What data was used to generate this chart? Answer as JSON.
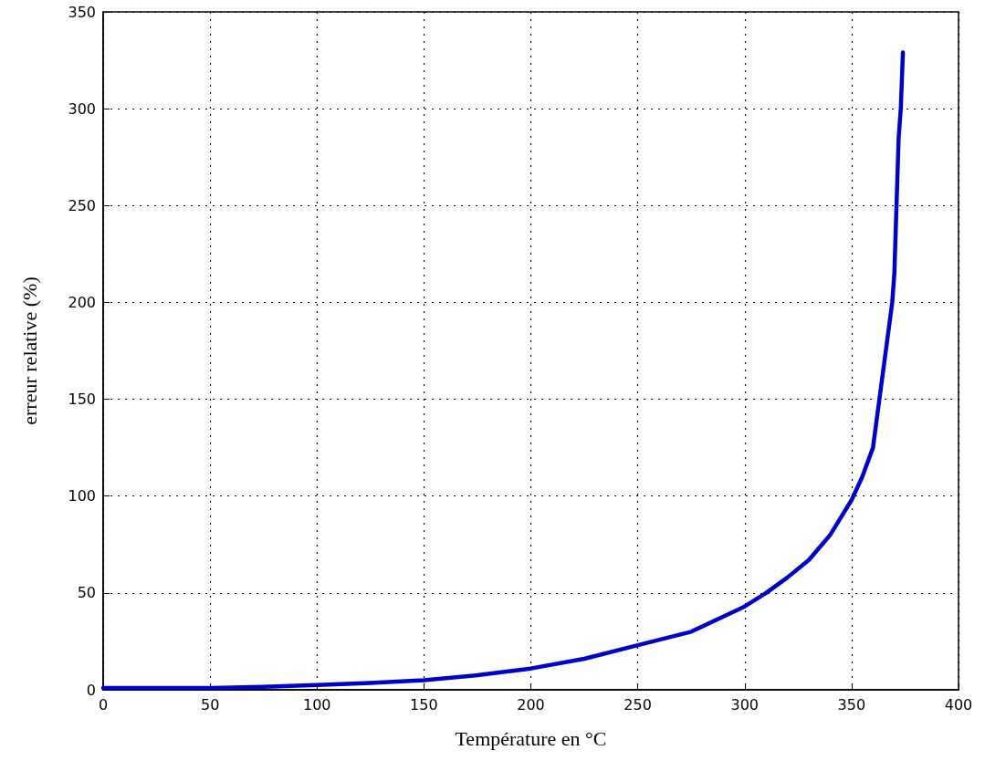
{
  "chart_data": {
    "type": "line",
    "xlabel": "Température en °C",
    "ylabel": "erreur relative (%)",
    "x": [
      0,
      25,
      50,
      75,
      100,
      125,
      150,
      175,
      200,
      225,
      250,
      275,
      300,
      310,
      320,
      330,
      340,
      350,
      355,
      360,
      363,
      366,
      369,
      370,
      371,
      372,
      373,
      374
    ],
    "series": [
      {
        "color": "#0000c8",
        "values": [
          1,
          1,
          1,
          1.5,
          2.5,
          3.5,
          5,
          7.5,
          11,
          16,
          23,
          30,
          43,
          50,
          58,
          67,
          80,
          98,
          110,
          125,
          150,
          175,
          200,
          215,
          250,
          285,
          300,
          329
        ]
      }
    ],
    "xlim": [
      0,
      400
    ],
    "xticks": [
      0,
      50,
      100,
      150,
      200,
      250,
      300,
      350,
      400
    ],
    "ylim": [
      0,
      350
    ],
    "yticks": [
      0,
      50,
      100,
      150,
      200,
      250,
      300,
      350
    ],
    "grid": true,
    "line_style": "solid",
    "marker": "none"
  }
}
